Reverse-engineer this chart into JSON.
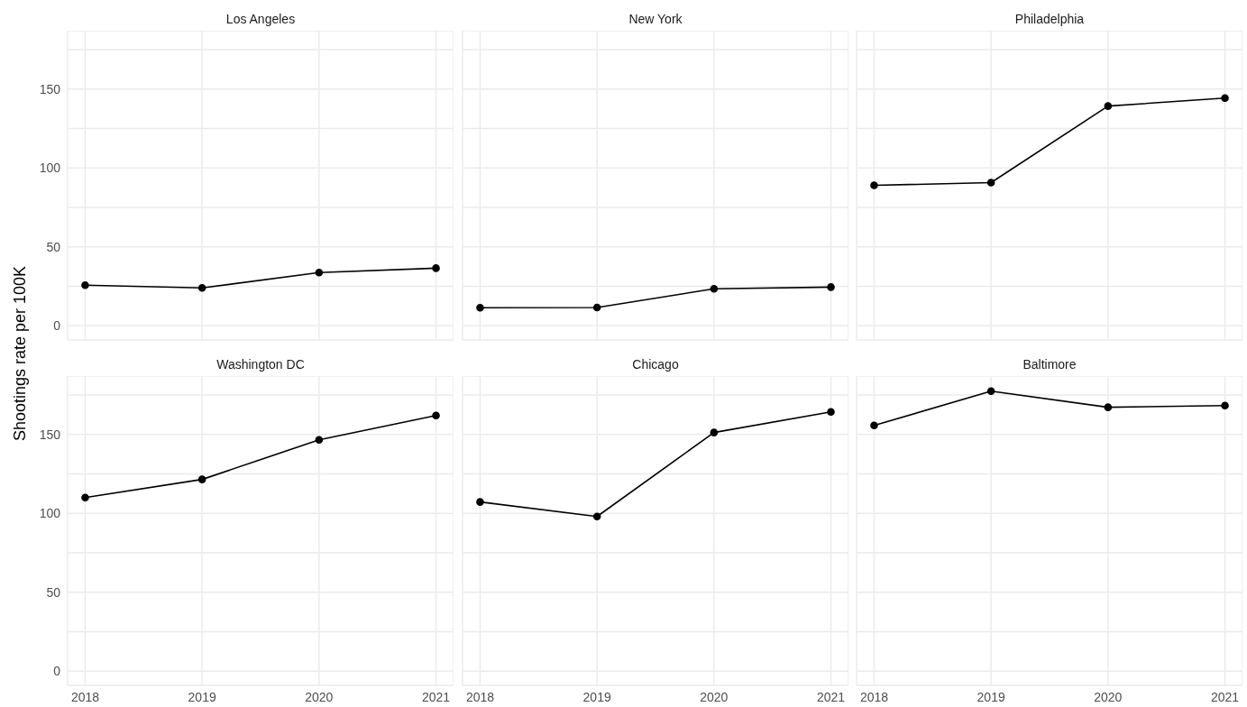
{
  "chart_data": [
    {
      "type": "line",
      "title": "Los Angeles",
      "ylabel": "Shootings rate per 100K",
      "x": [
        2018,
        2019,
        2020,
        2021
      ],
      "series": [
        {
          "color": "#000000",
          "values": [
            25.7,
            24,
            33.7,
            36.5
          ]
        }
      ],
      "xlim": [
        2017.85,
        2021.15
      ],
      "ylim": [
        -9,
        187
      ],
      "xticks": [
        2018,
        2019,
        2020,
        2021
      ],
      "yticks": [
        0,
        {
          "value": 25,
          "label": null
        },
        50,
        {
          "value": 75,
          "label": null
        },
        100,
        {
          "value": 125,
          "label": null
        },
        150,
        {
          "value": 175,
          "label": null
        }
      ],
      "grid": true,
      "marker": "circle",
      "line_style": "solid",
      "tick_labels": "y"
    },
    {
      "type": "line",
      "title": "New York",
      "x": [
        2018,
        2019,
        2020,
        2021
      ],
      "series": [
        {
          "color": "#000000",
          "values": [
            11.4,
            11.6,
            23.4,
            24.5
          ]
        }
      ],
      "xlim": [
        2017.85,
        2021.15
      ],
      "ylim": [
        -9,
        187
      ],
      "xticks": [
        2018,
        2019,
        2020,
        2021
      ],
      "yticks": [
        0,
        {
          "value": 25,
          "label": null
        },
        50,
        {
          "value": 75,
          "label": null
        },
        100,
        {
          "value": 125,
          "label": null
        },
        150,
        {
          "value": 175,
          "label": null
        }
      ],
      "grid": true,
      "marker": "circle",
      "line_style": "solid",
      "tick_labels": false
    },
    {
      "type": "line",
      "title": "Philadelphia",
      "x": [
        2018,
        2019,
        2020,
        2021
      ],
      "series": [
        {
          "color": "#000000",
          "values": [
            89,
            90.7,
            139.2,
            144.3
          ]
        }
      ],
      "xlim": [
        2017.85,
        2021.15
      ],
      "ylim": [
        -9,
        187
      ],
      "xticks": [
        2018,
        2019,
        2020,
        2021
      ],
      "yticks": [
        0,
        {
          "value": 25,
          "label": null
        },
        50,
        {
          "value": 75,
          "label": null
        },
        100,
        {
          "value": 125,
          "label": null
        },
        150,
        {
          "value": 175,
          "label": null
        }
      ],
      "grid": true,
      "marker": "circle",
      "line_style": "solid",
      "tick_labels": false
    },
    {
      "type": "line",
      "title": "Washington DC",
      "x": [
        2018,
        2019,
        2020,
        2021
      ],
      "series": [
        {
          "color": "#000000",
          "values": [
            110,
            121.5,
            146.6,
            162
          ]
        }
      ],
      "xlim": [
        2017.85,
        2021.15
      ],
      "ylim": [
        -9,
        187
      ],
      "xticks": [
        2018,
        2019,
        2020,
        2021
      ],
      "yticks": [
        0,
        {
          "value": 25,
          "label": null
        },
        50,
        {
          "value": 75,
          "label": null
        },
        100,
        {
          "value": 125,
          "label": null
        },
        150,
        {
          "value": 175,
          "label": null
        }
      ],
      "grid": true,
      "marker": "circle",
      "line_style": "solid"
    },
    {
      "type": "line",
      "title": "Chicago",
      "x": [
        2018,
        2019,
        2020,
        2021
      ],
      "series": [
        {
          "color": "#000000",
          "values": [
            107.2,
            98,
            151.2,
            164.3
          ]
        }
      ],
      "xlim": [
        2017.85,
        2021.15
      ],
      "ylim": [
        -9,
        187
      ],
      "xticks": [
        2018,
        2019,
        2020,
        2021
      ],
      "yticks": [
        0,
        {
          "value": 25,
          "label": null
        },
        50,
        {
          "value": 75,
          "label": null
        },
        100,
        {
          "value": 125,
          "label": null
        },
        150,
        {
          "value": 175,
          "label": null
        }
      ],
      "grid": true,
      "marker": "circle",
      "line_style": "solid",
      "tick_labels": "x"
    },
    {
      "type": "line",
      "title": "Baltimore",
      "x": [
        2018,
        2019,
        2020,
        2021
      ],
      "series": [
        {
          "color": "#000000",
          "values": [
            155.7,
            177.4,
            167.2,
            168.3
          ]
        }
      ],
      "xlim": [
        2017.85,
        2021.15
      ],
      "ylim": [
        -9,
        187
      ],
      "xticks": [
        2018,
        2019,
        2020,
        2021
      ],
      "yticks": [
        0,
        {
          "value": 25,
          "label": null
        },
        50,
        {
          "value": 75,
          "label": null
        },
        100,
        {
          "value": 125,
          "label": null
        },
        150,
        {
          "value": 175,
          "label": null
        }
      ],
      "grid": true,
      "marker": "circle",
      "line_style": "solid",
      "tick_labels": "x"
    }
  ]
}
